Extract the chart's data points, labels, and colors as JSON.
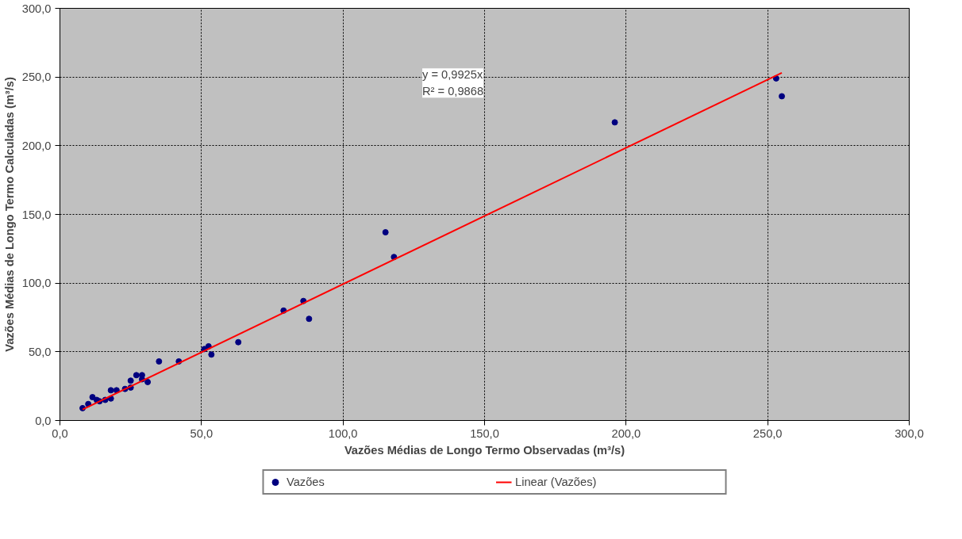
{
  "chart_data": {
    "type": "scatter",
    "xlabel": "Vazões Médias de Longo Termo Observadas (m³/s)",
    "ylabel": "Vazões Médias de Longo Termo Calculadas (m³/s)",
    "xlim": [
      0,
      300
    ],
    "ylim": [
      0,
      300
    ],
    "xticks": [
      {
        "value": 0,
        "label": "0,0"
      },
      {
        "value": 50,
        "label": "50,0"
      },
      {
        "value": 100,
        "label": "100,0"
      },
      {
        "value": 150,
        "label": "150,0"
      },
      {
        "value": 200,
        "label": "200,0"
      },
      {
        "value": 250,
        "label": "250,0"
      },
      {
        "value": 300,
        "label": "300,0"
      }
    ],
    "yticks": [
      {
        "value": 0,
        "label": "0,0"
      },
      {
        "value": 50,
        "label": "50,0"
      },
      {
        "value": 100,
        "label": "100,0"
      },
      {
        "value": 150,
        "label": "150,0"
      },
      {
        "value": 200,
        "label": "200,0"
      },
      {
        "value": 250,
        "label": "250,0"
      },
      {
        "value": 300,
        "label": "300,0"
      }
    ],
    "grid": true,
    "legend": "bottom",
    "annotations": [
      "y = 0,9925x\nR² = 0,9868"
    ],
    "series": [
      {
        "name": "Vazões",
        "color": "#000080",
        "x": [
          8,
          10,
          11.5,
          13,
          14,
          16,
          18,
          18,
          20,
          23,
          25,
          25,
          27,
          29,
          29,
          31,
          35,
          42,
          51,
          52.5,
          53.5,
          63,
          79,
          86,
          88,
          115,
          118,
          196,
          253,
          255
        ],
        "values": [
          9,
          12,
          17,
          15,
          14,
          15,
          16,
          22,
          22,
          23,
          24,
          29,
          33,
          33,
          30,
          28,
          43,
          43,
          52,
          54,
          48,
          57,
          80,
          87,
          74,
          137,
          119,
          217,
          249,
          236
        ]
      },
      {
        "name": "Linear (Vazões)",
        "type": "line",
        "color": "#ff0000",
        "x": [
          8,
          255
        ],
        "values": [
          8,
          253
        ]
      }
    ]
  }
}
